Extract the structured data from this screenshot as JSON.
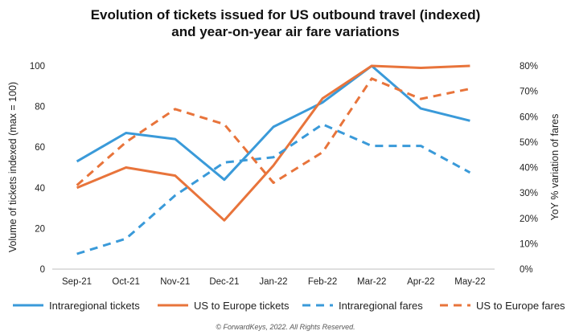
{
  "chart_data": {
    "type": "line",
    "title_lines": [
      "Evolution of tickets issued for US outbound travel (indexed)",
      "and year-on-year air fare variations"
    ],
    "ylabel_left": "Volume of tickets indexed (max = 100)",
    "ylabel_right": "YoY % variation of fares",
    "categories": [
      "Sep-21",
      "Oct-21",
      "Nov-21",
      "Dec-21",
      "Jan-22",
      "Feb-22",
      "Mar-22",
      "Apr-22",
      "May-22"
    ],
    "y_left": {
      "min": 0,
      "max": 100,
      "ticks": [
        "0",
        "20",
        "40",
        "60",
        "80",
        "100"
      ]
    },
    "y_right": {
      "min": 0,
      "max": 80,
      "ticks": [
        "0%",
        "10%",
        "20%",
        "30%",
        "40%",
        "50%",
        "60%",
        "70%",
        "80%"
      ]
    },
    "grid": false,
    "legend_position": "bottom",
    "series": [
      {
        "name": "Intraregional tickets",
        "axis": "left",
        "color": "#3a9ad9",
        "dashed": false,
        "values": [
          53,
          67,
          64,
          44,
          70,
          82,
          100,
          79,
          73
        ]
      },
      {
        "name": "US to Europe tickets",
        "axis": "left",
        "color": "#e8743b",
        "dashed": false,
        "values": [
          40,
          50,
          46,
          24,
          51,
          84,
          100,
          99,
          100
        ]
      },
      {
        "name": "Intraregional fares",
        "axis": "right",
        "color": "#3a9ad9",
        "dashed": true,
        "values": [
          6,
          12,
          29,
          42,
          44,
          57,
          48.5,
          48.5,
          38
        ]
      },
      {
        "name": "US to Europe fares",
        "axis": "right",
        "color": "#e8743b",
        "dashed": true,
        "values": [
          33,
          50,
          63,
          57,
          34,
          46,
          75,
          67,
          71
        ]
      }
    ],
    "footer": "© ForwardKeys, 2022. All Rights Reserved."
  }
}
